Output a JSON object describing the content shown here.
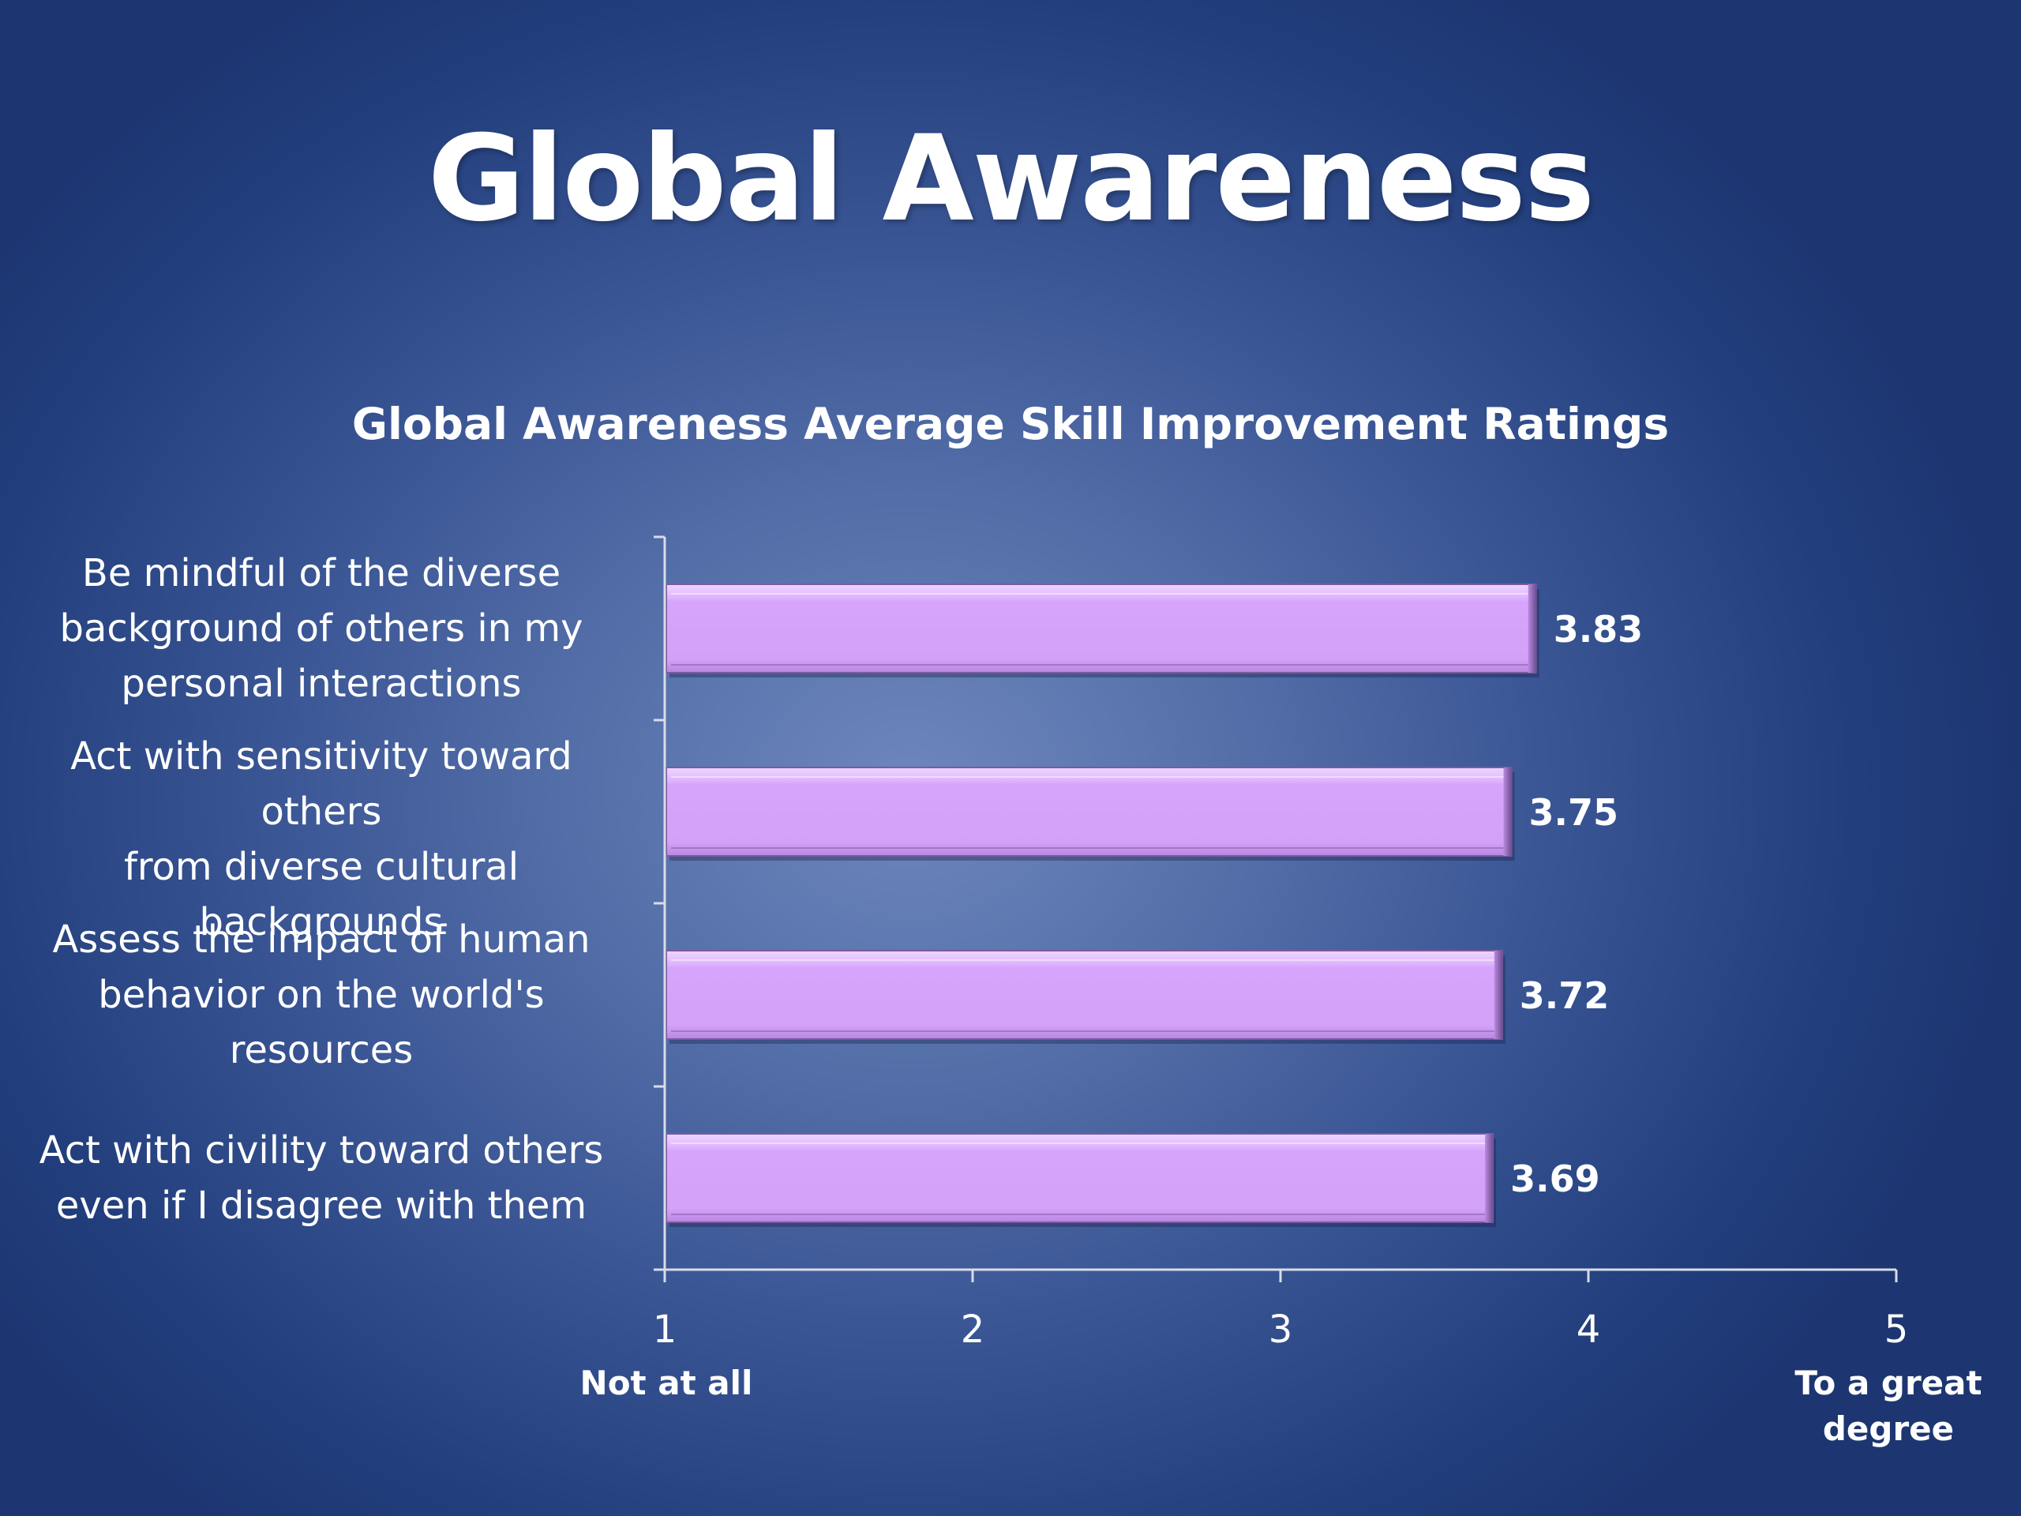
{
  "slide": {
    "title": "Global Awareness"
  },
  "colors": {
    "bar_fill": "#d6a4fb",
    "bar_top_highlight": "#e9c9ff",
    "bar_edge": "#7a5a9e",
    "axis": "#d8dcea",
    "text": "#ffffff"
  },
  "chart_data": {
    "type": "bar",
    "orientation": "horizontal",
    "title": "Global Awareness Average Skill Improvement Ratings",
    "categories": [
      "Be mindful of the diverse background of others in my personal interactions",
      "Act with sensitivity toward others from diverse cultural backgrounds",
      "Assess the impact of human behavior on the world's resources",
      "Act with civility toward others even if I disagree with them"
    ],
    "category_label_lines": [
      [
        "Be mindful of the diverse",
        "background of others in my",
        "personal interactions"
      ],
      [
        "Act with sensitivity toward others",
        "from diverse cultural",
        "backgrounds"
      ],
      [
        "Assess the impact of human",
        "behavior on the world's",
        "resources"
      ],
      [
        "Act with civility toward others",
        "even if I disagree with them"
      ]
    ],
    "values": [
      3.83,
      3.75,
      3.72,
      3.69
    ],
    "data_labels": [
      "3.83",
      "3.75",
      "3.72",
      "3.69"
    ],
    "xlim": [
      1,
      5
    ],
    "x_ticks": [
      1,
      2,
      3,
      4,
      5
    ],
    "x_tick_labels": [
      "1",
      "2",
      "3",
      "4",
      "5"
    ],
    "x_tick_sublabels": {
      "1": [
        "Not at all"
      ],
      "5": [
        "To a great",
        "degree"
      ]
    },
    "grid": false,
    "legend": "none"
  }
}
